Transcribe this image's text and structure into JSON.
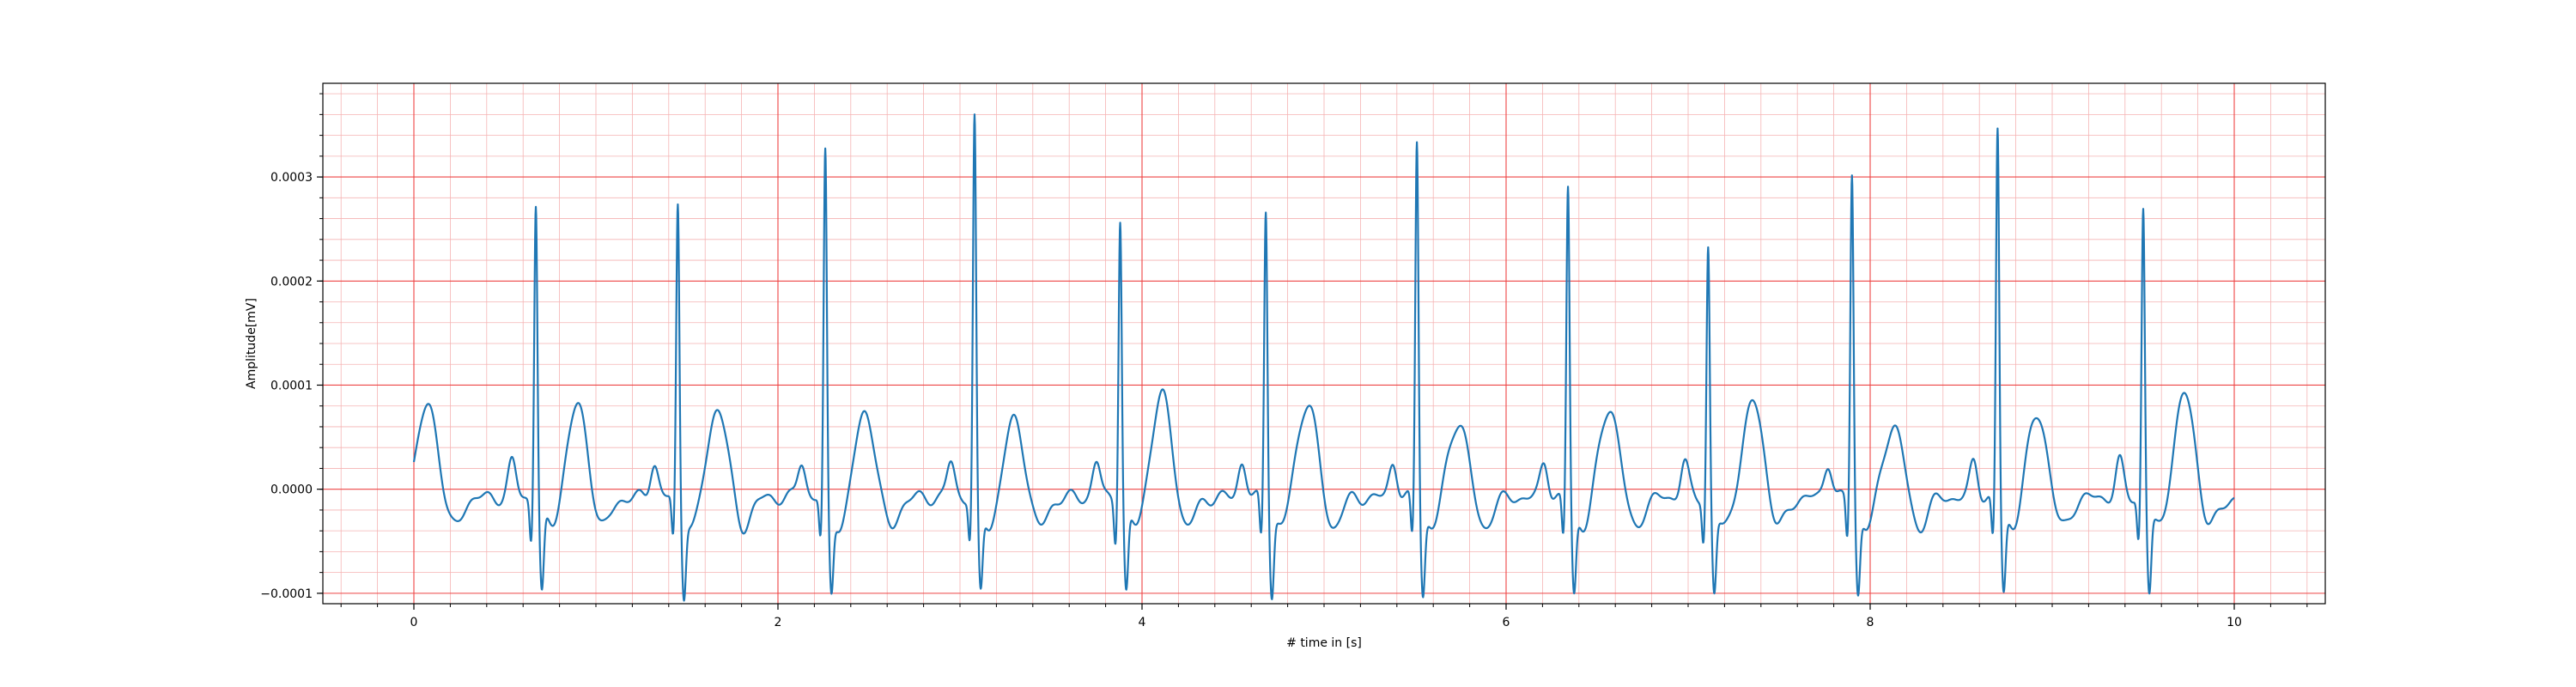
{
  "chart_data": {
    "type": "line",
    "title": "",
    "xlabel": "# time in [s]",
    "ylabel": "Amplitude[mV]",
    "xlim": [
      -0.5,
      10.5
    ],
    "ylim": [
      -0.00011,
      0.00039
    ],
    "x_ticks": [
      0,
      2,
      4,
      6,
      8,
      10
    ],
    "x_tick_labels": [
      "0",
      "2",
      "4",
      "6",
      "8",
      "10"
    ],
    "y_ticks": [
      -0.0001,
      0.0,
      0.0001,
      0.0002,
      0.0003
    ],
    "y_tick_labels": [
      "−0.0001",
      "0.0000",
      "0.0001",
      "0.0002",
      "0.0003"
    ],
    "grid": {
      "major": true,
      "minor": true,
      "major_color": "#ee4444",
      "minor_color": "#f5b3b3"
    },
    "series": [
      {
        "color": "#1f77b4",
        "r_peaks": [
          {
            "t": 0.67,
            "r": 0.000288
          },
          {
            "t": 1.45,
            "r": 0.000284
          },
          {
            "t": 2.26,
            "r": 0.000333
          },
          {
            "t": 3.08,
            "r": 0.000367
          },
          {
            "t": 3.88,
            "r": 0.000274
          },
          {
            "t": 4.68,
            "r": 0.000282
          },
          {
            "t": 5.51,
            "r": 0.000347
          },
          {
            "t": 6.34,
            "r": 0.000302
          },
          {
            "t": 7.11,
            "r": 0.000245
          },
          {
            "t": 7.9,
            "r": 0.000316
          },
          {
            "t": 8.7,
            "r": 0.000357
          },
          {
            "t": 9.5,
            "r": 0.000282
          }
        ],
        "t_waves": [
          {
            "t": 0.08,
            "a": 6e-05
          },
          {
            "t": 0.9,
            "a": 5.8e-05
          },
          {
            "t": 1.67,
            "a": 5.7e-05
          },
          {
            "t": 2.48,
            "a": 5.3e-05
          },
          {
            "t": 3.3,
            "a": 4.5e-05
          },
          {
            "t": 4.11,
            "a": 6.8e-05
          },
          {
            "t": 4.91,
            "a": 6.2e-05
          },
          {
            "t": 5.74,
            "a": 4.4e-05
          },
          {
            "t": 6.57,
            "a": 5.7e-05
          },
          {
            "t": 7.36,
            "a": 6.2e-05
          },
          {
            "t": 8.13,
            "a": 4e-05
          },
          {
            "t": 8.92,
            "a": 5e-05
          },
          {
            "t": 9.73,
            "a": 6.9e-05
          }
        ]
      }
    ]
  }
}
